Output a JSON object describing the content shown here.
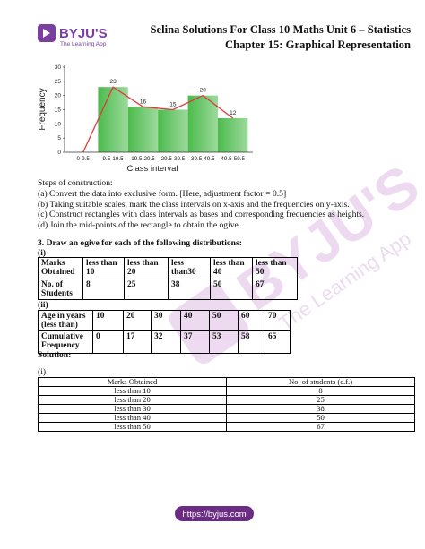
{
  "header": {
    "logo": "BYJU'S",
    "logo_tagline": "The Learning App",
    "title": "Selina Solutions For Class 10 Maths Unit 6 – Statistics",
    "subtitle": "Chapter 15: Graphical Representation"
  },
  "chart_data": {
    "type": "bar",
    "categories": [
      "0-9.5",
      "9.5-19.5",
      "19.5-29.5",
      "29.5-39.5",
      "39.5-49.5",
      "49.5-59.5"
    ],
    "histogram": {
      "color": "#4cbb4c",
      "values": [
        null,
        23,
        16,
        15,
        20,
        12
      ]
    },
    "polygon": {
      "color": "#e0393e",
      "values": [
        0,
        23,
        16,
        15,
        20,
        12
      ]
    },
    "ylim": [
      0,
      30
    ],
    "yticks": [
      0,
      5,
      10,
      15,
      20,
      25,
      30
    ],
    "ylabel": "Frequency",
    "xlabel": "Class interval"
  },
  "steps": {
    "heading": "Steps of construction:",
    "items": [
      "(a) Convert the data into exclusive form. [Here, adjustment factor = 0.5]",
      "(b) Taking suitable scales, mark the class intervals on x-axis and the frequencies on y-axis.",
      "(c) Construct rectangles with class intervals as bases and corresponding frequencies as heights.",
      "(d) Join the mid-points of the rectangle to obtain the ogive."
    ]
  },
  "question": {
    "text": "3. Draw an ogive for each of the following distributions:",
    "parts": [
      {
        "label": "(i)",
        "table": [
          [
            "Marks Obtained",
            "less than 10",
            "less than 20",
            "less than30",
            "less than 40",
            "less than 50"
          ],
          [
            "No. of Students",
            "8",
            "25",
            "38",
            "50",
            "67"
          ]
        ]
      },
      {
        "label": "(ii)",
        "table": [
          [
            "Age in years (less than)",
            "10",
            "20",
            "30",
            "40",
            "50",
            "60",
            "70"
          ],
          [
            "Cumulative Frequency",
            "0",
            "17",
            "32",
            "37",
            "53",
            "58",
            "65"
          ]
        ]
      }
    ]
  },
  "solution": {
    "heading": "Solution:",
    "label": "(i)",
    "table": {
      "header": [
        "Marks Obtained",
        "No. of students (c.f.)"
      ],
      "rows": [
        [
          "less than 10",
          "8"
        ],
        [
          "less than 20",
          "25"
        ],
        [
          "less than 30",
          "38"
        ],
        [
          "less than 40",
          "50"
        ],
        [
          "less than 50",
          "67"
        ]
      ]
    }
  },
  "footer": {
    "url": "https://byjus.com"
  }
}
